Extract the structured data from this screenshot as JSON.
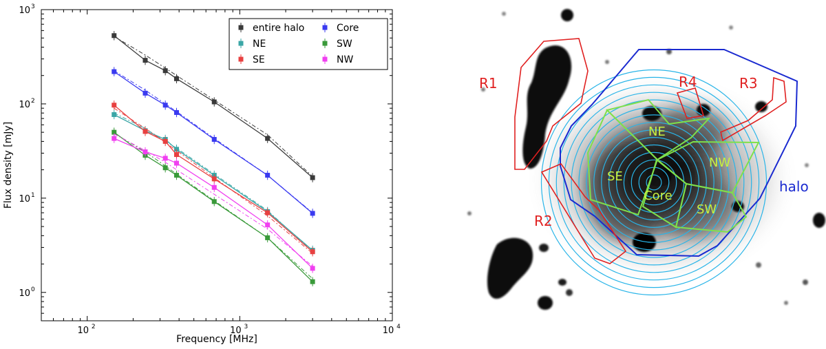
{
  "chart_data": {
    "type": "line",
    "xlabel": "Frequency [MHz]",
    "ylabel": "Flux density [mJy]",
    "xscale": "log",
    "yscale": "log",
    "xlim": [
      50,
      10000
    ],
    "ylim": [
      0.5,
      1000
    ],
    "x_tick_labels": [
      "10",
      "10",
      "10"
    ],
    "x_tick_exponents": [
      "2",
      "3",
      "4"
    ],
    "x_tick_values": [
      100,
      1000,
      10000
    ],
    "y_tick_labels": [
      "10",
      "10",
      "10",
      "10"
    ],
    "y_tick_exponents": [
      "0",
      "1",
      "2",
      "3"
    ],
    "y_tick_values": [
      1,
      10,
      100,
      1000
    ],
    "legend_position": "top-right",
    "x": [
      150,
      240,
      325,
      385,
      680,
      1520,
      3000
    ],
    "series": [
      {
        "name": "entire halo",
        "color": "#3a3a3a",
        "values": [
          530,
          290,
          225,
          185,
          105,
          43,
          16.5
        ],
        "fit": [
          520,
          330,
          240,
          200,
          110,
          47,
          17
        ]
      },
      {
        "name": "NE",
        "color": "#3aa6a6",
        "values": [
          77,
          52,
          42,
          33,
          17.5,
          7.2,
          2.8
        ],
        "fit": [
          80,
          55,
          40,
          34,
          18,
          7.4,
          2.7
        ]
      },
      {
        "name": "SE",
        "color": "#e84040",
        "values": [
          97,
          51,
          40,
          29,
          16,
          7.0,
          2.7
        ],
        "fit": [
          90,
          55,
          39,
          32,
          16.5,
          6.5,
          2.6
        ]
      },
      {
        "name": "Core",
        "color": "#3a3af0",
        "values": [
          220,
          130,
          97,
          81,
          42,
          17.5,
          6.9
        ],
        "fit": [
          225,
          140,
          100,
          83,
          43,
          17.5,
          7.0
        ]
      },
      {
        "name": "SW",
        "color": "#3a9a3a",
        "values": [
          50,
          28.5,
          21,
          17.5,
          9.2,
          3.8,
          1.3
        ],
        "fit": [
          49,
          31,
          22,
          18,
          9.4,
          3.8,
          1.4
        ]
      },
      {
        "name": "NW",
        "color": "#f040f0",
        "values": [
          43,
          31,
          26.5,
          23.5,
          13,
          5.2,
          1.8
        ],
        "fit": [
          48,
          32,
          24,
          20,
          11,
          4.7,
          1.9
        ]
      }
    ]
  },
  "image": {
    "region_labels": [
      "R1",
      "R2",
      "R3",
      "R4"
    ],
    "sector_labels": [
      "NE",
      "SE",
      "NW",
      "SW",
      "Core"
    ],
    "halo_label": "halo",
    "colors": {
      "region": "#e02020",
      "sector": "#7fe04a",
      "sector_text": "#c8f040",
      "halo": "#1a2ad0",
      "annuli": "#28b4e8"
    }
  }
}
